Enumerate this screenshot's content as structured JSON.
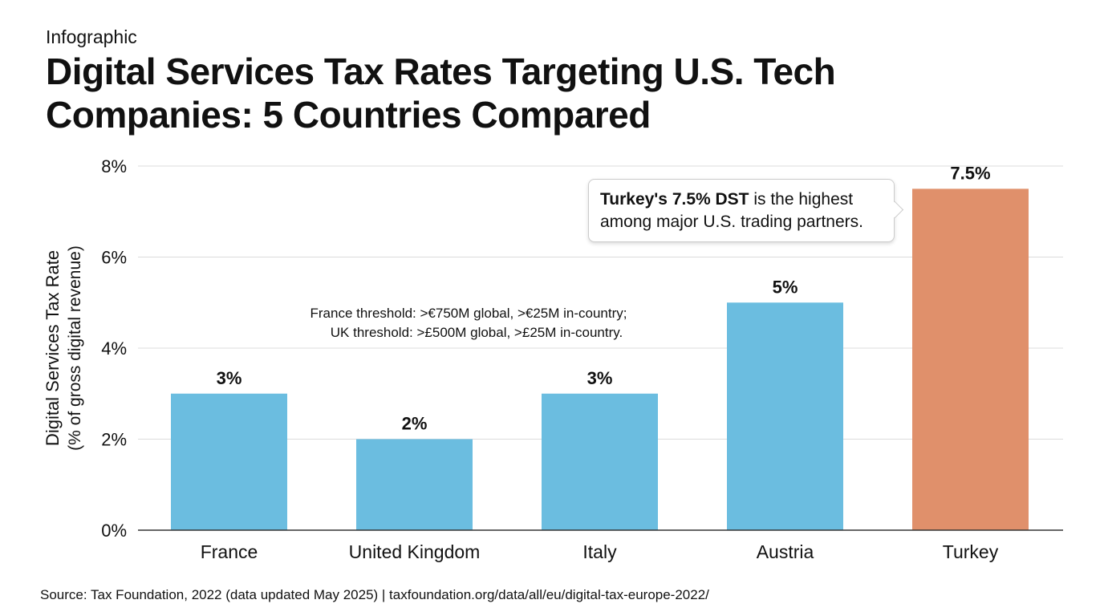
{
  "kicker": "Infographic",
  "title": "Digital Services Tax Rates Targeting U.S. Tech Companies: 5 Countries Compared",
  "source": "Source: Tax Foundation, 2022 (data updated May 2025) | taxfoundation.org/data/all/eu/digital-tax-europe-2022/",
  "chart_data": {
    "type": "bar",
    "title": "Digital Services Tax Rates Targeting U.S. Tech Companies: 5 Countries Compared",
    "categories": [
      "France",
      "United Kingdom",
      "Italy",
      "Austria",
      "Turkey"
    ],
    "values": [
      3,
      2,
      3,
      5,
      7.5
    ],
    "data_labels": [
      "3%",
      "2%",
      "3%",
      "5%",
      "7.5%"
    ],
    "ylabel": "Digital Services Tax Rate",
    "ylabel_sub": "(% of gross digital revenue)",
    "xlabel": "",
    "ylim": [
      0,
      8
    ],
    "yticks": [
      0,
      2,
      4,
      6,
      8
    ],
    "ytick_labels": [
      "0%",
      "2%",
      "4%",
      "6%",
      "8%"
    ],
    "grid": true,
    "colors": {
      "default": "#6bbde0",
      "highlight": "#e0906b"
    },
    "highlight_index": 4,
    "annotations": {
      "threshold_line1": "France threshold: >€750M global, >€25M in-country;",
      "threshold_line2": "UK threshold: >£500M global, >£25M in-country.",
      "callout_bold": "Turkey's 7.5% DST",
      "callout_rest1": " is the highest",
      "callout_rest2": "among major U.S. trading partners."
    }
  }
}
